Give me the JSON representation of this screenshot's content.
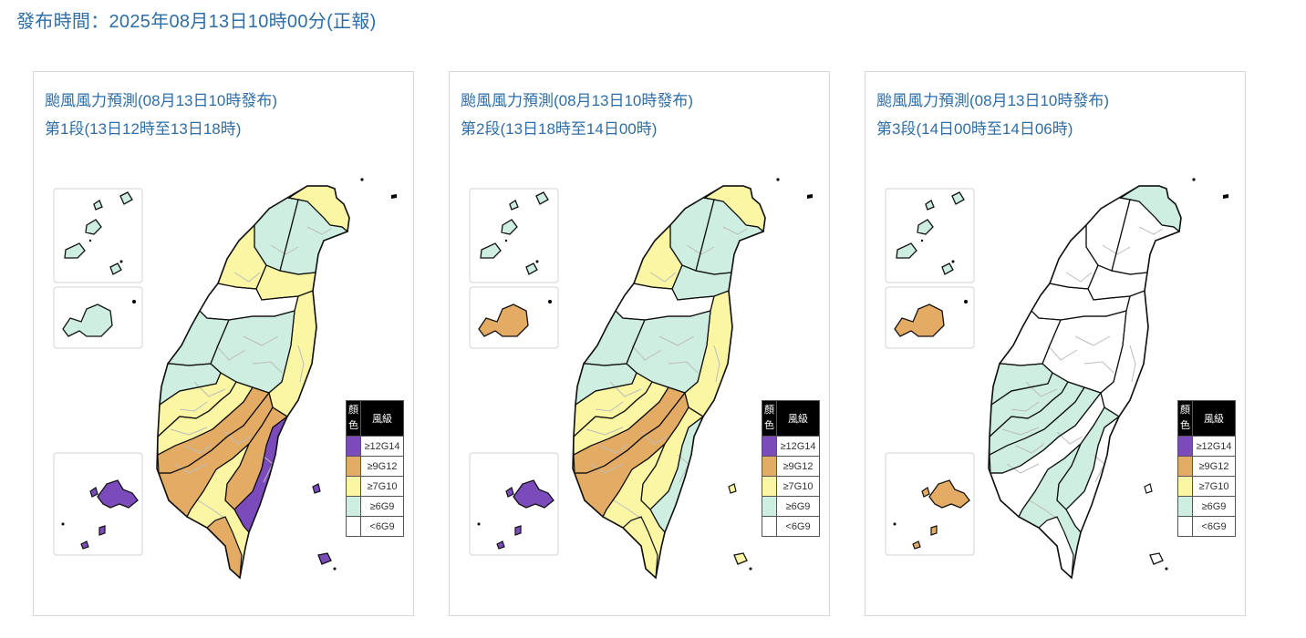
{
  "header": {
    "title": "發布時間：2025年08月13日10時00分(正報)"
  },
  "colors": {
    "lt6": "#ffffff",
    "ge6": "#cdeee0",
    "ge7": "#fbf6a4",
    "ge9": "#e3ab64",
    "ge12": "#7c4bbb",
    "outline": "#111111",
    "town": "#bdbdbd"
  },
  "panels": [
    {
      "title_line1": "颱風風力預測(08月13日10時發布)",
      "title_line2": "第1段(13日12時至13日18時)",
      "matsu": "ge6",
      "penghu": "ge6",
      "kinmen": "ge12",
      "orchid": "ge12",
      "regions": [
        "ge7",
        "ge6",
        "ge6",
        "ge7",
        "ge7",
        "lt6",
        "ge6",
        "ge6",
        "ge7",
        "ge6",
        "ge7",
        "ge7",
        "ge9",
        "ge9",
        "ge12",
        "ge9",
        "ge7",
        "ge9"
      ]
    },
    {
      "title_line1": "颱風風力預測(08月13日10時發布)",
      "title_line2": "第2段(13日18時至14日00時)",
      "matsu": "ge6",
      "penghu": "ge9",
      "kinmen": "ge12",
      "orchid": "ge7",
      "regions": [
        "ge7",
        "ge6",
        "ge6",
        "ge7",
        "ge6",
        "lt6",
        "ge6",
        "ge6",
        "ge7",
        "ge6",
        "ge7",
        "ge7",
        "ge9",
        "ge9",
        "ge6",
        "ge7",
        "ge7",
        "ge7"
      ]
    },
    {
      "title_line1": "颱風風力預測(08月13日10時發布)",
      "title_line2": "第3段(14日00時至14日06時)",
      "matsu": "ge6",
      "penghu": "ge9",
      "kinmen": "ge9",
      "orchid": "lt6",
      "regions": [
        "ge6",
        "lt6",
        "lt6",
        "lt6",
        "lt6",
        "lt6",
        "lt6",
        "lt6",
        "lt6",
        "ge6",
        "ge6",
        "ge6",
        "ge6",
        "lt6",
        "lt6",
        "ge6",
        "ge6",
        "lt6"
      ]
    }
  ],
  "legend": {
    "header_color": "顏色",
    "header_level": "風級",
    "levels": [
      {
        "key": "ge12",
        "label": "≥12G14"
      },
      {
        "key": "ge9",
        "label": "≥9G12"
      },
      {
        "key": "ge7",
        "label": "≥7G10"
      },
      {
        "key": "ge6",
        "label": "≥6G9"
      },
      {
        "key": "lt6",
        "label": "<6G9"
      }
    ]
  }
}
